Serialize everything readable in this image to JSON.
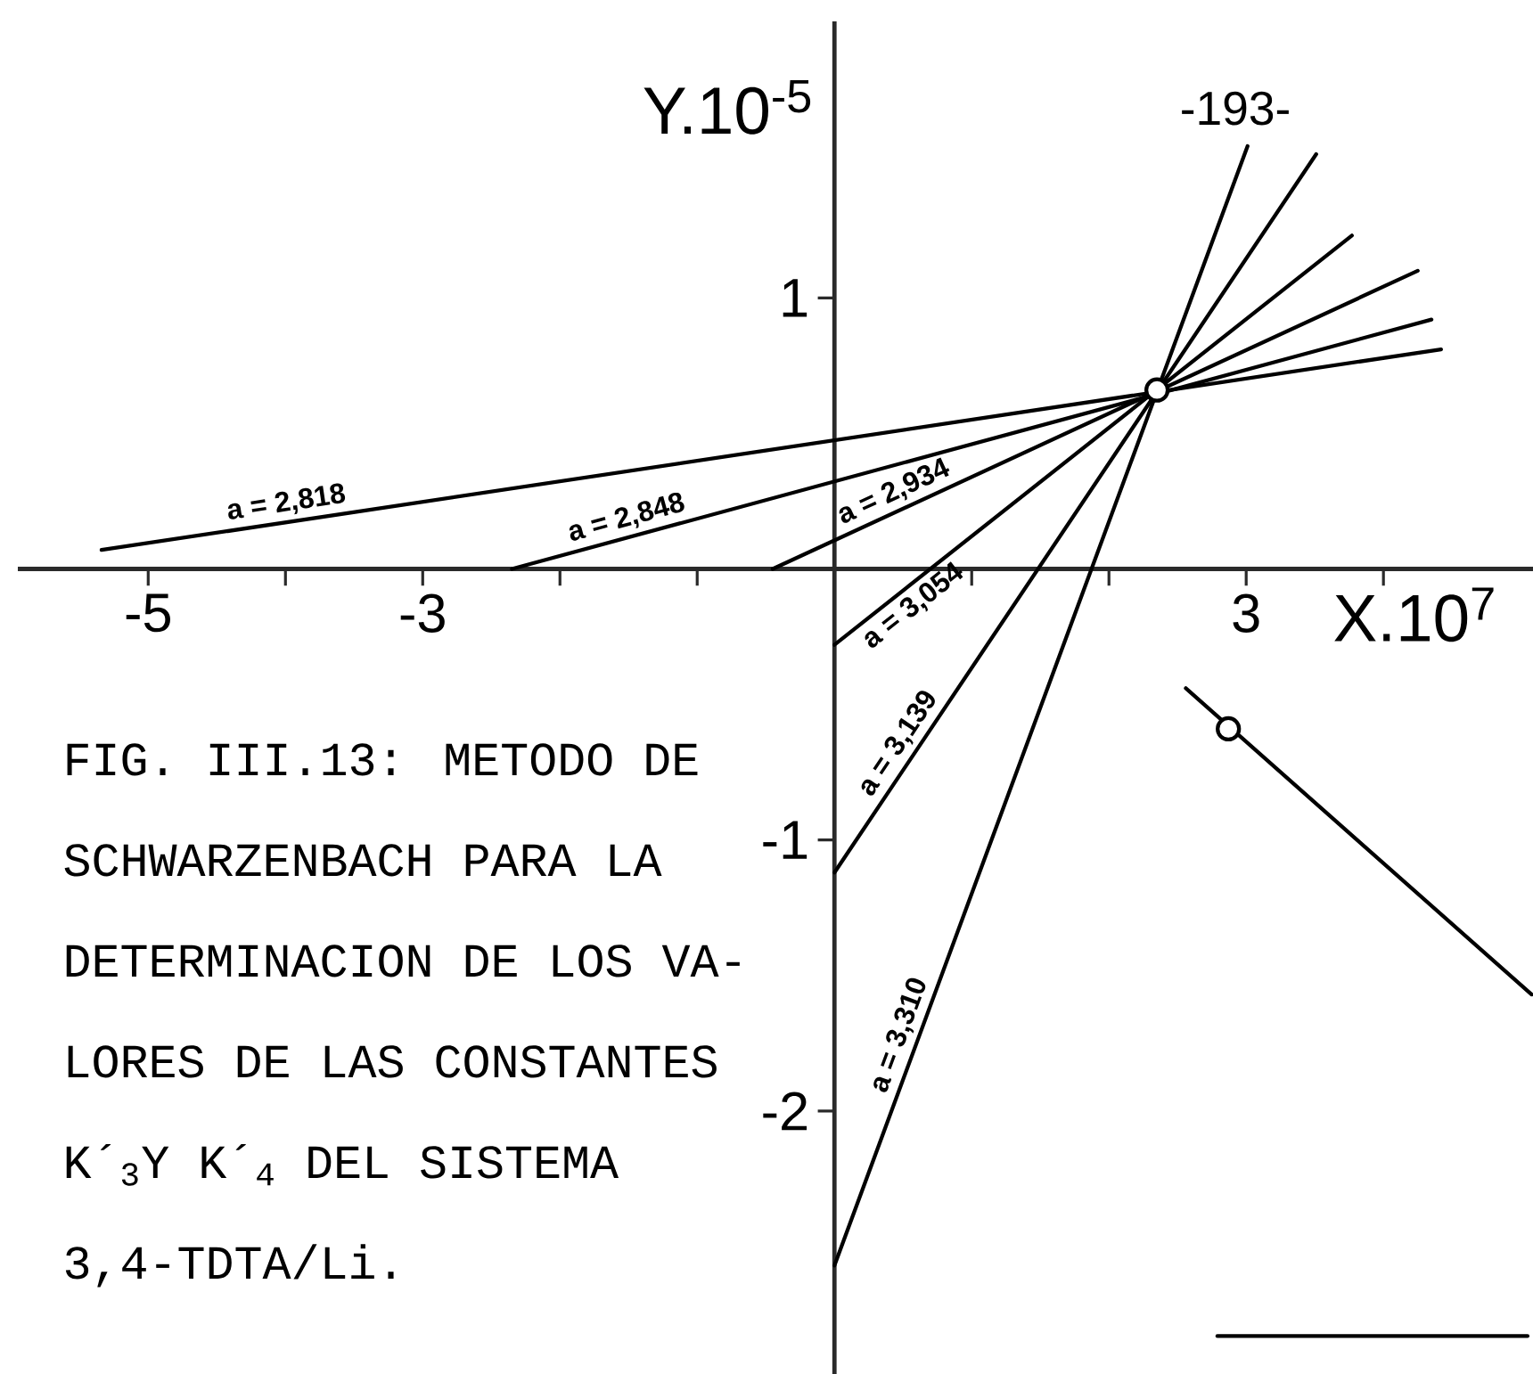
{
  "chart_data": {
    "type": "line",
    "xlabel": "X.10$^{7}$",
    "ylabel": "Y.10$^{-5}$",
    "annotations": [
      "-193-",
      "FIG. III.13: METODO DE",
      "SCHWARZENBACH PARA LA",
      "DETERMINACION DE LOS VA-",
      "LORES DE LAS CONSTANTES",
      "K´$_{3}$Y K´$_{4}$ DEL SISTEMA",
      "3,4-TDTA/Li."
    ],
    "xlim": [
      -5.95,
      5.09
    ],
    "ylim": [
      -2.97,
      2.02
    ],
    "xticks": [
      -5,
      {
        "value": -4,
        "label": null
      },
      -3,
      {
        "value": -2,
        "label": null
      },
      {
        "value": -1,
        "label": null
      },
      {
        "value": 1,
        "label": null
      },
      {
        "value": 2,
        "label": null
      },
      3,
      {
        "value": 4,
        "label": null
      }
    ],
    "yticks": [
      -2,
      -1,
      1
    ],
    "line_style": "solid",
    "marker": "none",
    "series": [
      {
        "name": "a = 2,818",
        "color": "#000000",
        "x": [
          -5.34,
          4.42
        ],
        "values": [
          0.07,
          0.81
        ]
      },
      {
        "name": "a = 2,848",
        "color": "#000000",
        "x": [
          -2.35,
          4.35
        ],
        "values": [
          0,
          0.92
        ]
      },
      {
        "name": "a = 2,934",
        "color": "#000000",
        "x": [
          -0.45,
          4.25
        ],
        "values": [
          0,
          1.1
        ]
      },
      {
        "name": "a = 3,054",
        "color": "#000000",
        "x": [
          0,
          3.77
        ],
        "values": [
          -0.28,
          1.23
        ]
      },
      {
        "name": "a = 3,139",
        "color": "#000000",
        "x": [
          0,
          3.51
        ],
        "values": [
          -1.12,
          1.53
        ]
      },
      {
        "name": "a = 3,310",
        "color": "#000000",
        "x": [
          0,
          3.01
        ],
        "values": [
          -2.57,
          1.56
        ]
      },
      {
        "type": "line",
        "color": "#000000",
        "x": [
          2.56,
          5.08
        ],
        "values": [
          -0.44,
          -1.57
        ]
      },
      {
        "type": "line",
        "color": "#000000",
        "x": [
          2.79,
          5.05
        ],
        "values": [
          -2.83,
          -2.83
        ]
      },
      {
        "type": "scatter",
        "marker": "circle",
        "color": "#000000",
        "x": [
          2.35,
          2.87
        ],
        "values": [
          0.66,
          -0.59
        ]
      }
    ]
  }
}
